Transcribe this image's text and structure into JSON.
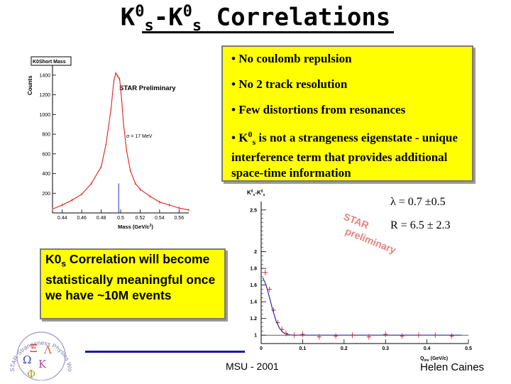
{
  "title": {
    "k": "K",
    "zero": "0",
    "s": "s",
    "dash": "-",
    "rest": " Correlations"
  },
  "plot1": {
    "hist_title": "K0Short Mass",
    "ylabel": "Counts",
    "yticks": [
      "1400",
      "1200",
      "1000",
      "800",
      "600",
      "400",
      "200"
    ],
    "xticks": [
      "0.44",
      "0.46",
      "0.48",
      "0.5",
      "0.52",
      "0.54",
      "0.56"
    ],
    "xlabel": "Mass (GeV/c",
    "xlabel_sup": "2",
    "xlabel_close": ")",
    "annotation": "STAR Preliminary",
    "sigma": "σ = 17 MeV"
  },
  "bullets": {
    "b1": "• No coulomb repulsion",
    "b2": "• No 2 track resolution",
    "b3": "• Few distortions from resonances",
    "b4_a": "• K",
    "b4_sup": "0",
    "b4_sub": "s",
    "b4_b": " is not a strangeness eigenstate - unique interference term that provides additional space-time information"
  },
  "plot2": {
    "hist_label_a": "K",
    "hist_label_b": "K",
    "yticks": [
      "2.5",
      "2",
      "1.8",
      "1.6",
      "1.4",
      "1.2",
      "1"
    ],
    "xticks": [
      "0",
      "0.1",
      "0.2",
      "0.3",
      "0.4",
      "0.5"
    ],
    "xlabel": "Q",
    "xlabel_sub": "inv",
    "xlabel_rest": " (GeV/c)",
    "watermark_1": "STAR",
    "watermark_2": "preliminary"
  },
  "params": {
    "lambda": "λ = 0.7 ±0.5",
    "radius": "R = 6.5 ± 2.3"
  },
  "leftbox": {
    "a": "K0",
    "sub": "s",
    "b": " Correlation will become statistically meaningful once we have ~10M events"
  },
  "logo": {
    "ring_text": "STAR Strangeness Physics Working Group",
    "greek": [
      "Ξ",
      "Λ",
      "Ω",
      "K",
      "Φ"
    ]
  },
  "footer": {
    "center": "MSU - 2001",
    "right": "Helen Caines"
  },
  "chart_data": [
    {
      "type": "bar",
      "title": "K0Short Mass",
      "xlabel": "Mass (GeV/c2)",
      "ylabel": "Counts",
      "xlim": [
        0.43,
        0.57
      ],
      "ylim": [
        0,
        1500
      ],
      "x": [
        0.43,
        0.44,
        0.45,
        0.46,
        0.47,
        0.48,
        0.485,
        0.49,
        0.493,
        0.495,
        0.497,
        0.499,
        0.501,
        0.503,
        0.506,
        0.51,
        0.515,
        0.52,
        0.53,
        0.54,
        0.55,
        0.56,
        0.57
      ],
      "values": [
        40,
        80,
        130,
        190,
        300,
        470,
        700,
        1050,
        1340,
        1420,
        1390,
        1360,
        1150,
        900,
        640,
        430,
        300,
        240,
        170,
        110,
        80,
        50,
        30
      ]
    },
    {
      "type": "scatter",
      "xlabel": "Qinv (GeV/c)",
      "ylabel": "",
      "xlim": [
        0,
        0.5
      ],
      "ylim": [
        0.9,
        2.6
      ],
      "x": [
        0.01,
        0.02,
        0.03,
        0.04,
        0.05,
        0.06,
        0.08,
        0.1,
        0.14,
        0.18,
        0.22,
        0.26,
        0.3,
        0.34,
        0.38,
        0.42,
        0.46
      ],
      "values": [
        1.75,
        1.55,
        1.3,
        1.15,
        1.07,
        1.02,
        1.0,
        1.01,
        0.98,
        0.99,
        1.0,
        0.98,
        1.01,
        0.99,
        1.0,
        1.0,
        0.99
      ]
    }
  ]
}
